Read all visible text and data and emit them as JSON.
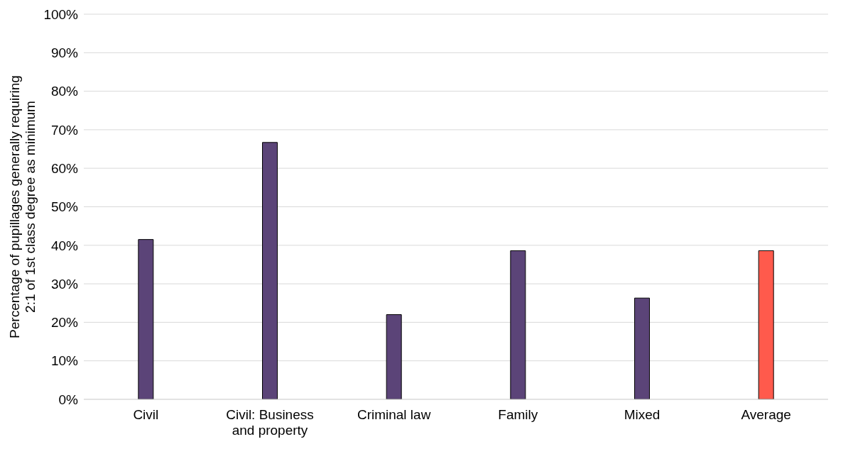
{
  "chart_data": {
    "type": "bar",
    "ylabel": "Percentage of pupillages generally requiring 2:1 of 1st class degree as minimum",
    "categories": [
      "Civil",
      "Civil: Business and property",
      "Criminal law",
      "Family",
      "Mixed",
      "Average"
    ],
    "values": [
      41.5,
      66.7,
      22.0,
      38.6,
      26.3,
      38.6
    ],
    "colors": [
      "#5b4478",
      "#5b4478",
      "#5b4478",
      "#5b4478",
      "#5b4478",
      "#ff5a4c"
    ],
    "ylim": [
      0,
      100
    ],
    "yticks": [
      {
        "value": 0,
        "label": "0%"
      },
      {
        "value": 10,
        "label": "10%"
      },
      {
        "value": 20,
        "label": "20%"
      },
      {
        "value": 30,
        "label": "30%"
      },
      {
        "value": 40,
        "label": "40%"
      },
      {
        "value": 50,
        "label": "50%"
      },
      {
        "value": 60,
        "label": "60%"
      },
      {
        "value": 70,
        "label": "70%"
      },
      {
        "value": 80,
        "label": "80%"
      },
      {
        "value": 90,
        "label": "90%"
      },
      {
        "value": 100,
        "label": "100%"
      }
    ],
    "grid": "y"
  }
}
